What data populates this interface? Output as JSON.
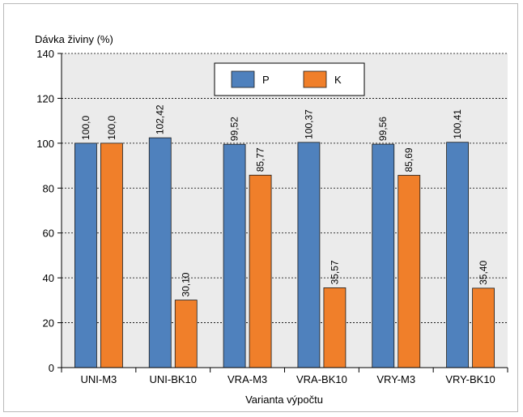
{
  "chart_data": {
    "type": "bar",
    "title": "",
    "ylabel": "Dávka živiny (%)",
    "xlabel": "Varianta výpočtu",
    "categories": [
      "UNI-M3",
      "UNI-BK10",
      "VRA-M3",
      "VRA-BK10",
      "VRY-M3",
      "VRY-BK10"
    ],
    "series": [
      {
        "name": "P",
        "color": "#4f81bd",
        "values": [
          100.0,
          102.42,
          99.52,
          100.37,
          99.56,
          100.41
        ],
        "labels": [
          "100,0",
          "102,42",
          "99,52",
          "100,37",
          "99,56",
          "100,41"
        ]
      },
      {
        "name": "K",
        "color": "#f07f2a",
        "values": [
          100.0,
          30.1,
          85.77,
          35.57,
          85.69,
          35.4
        ],
        "labels": [
          "100,0",
          "30,10",
          "85,77",
          "35,57",
          "85,69",
          "35,40"
        ]
      }
    ],
    "ylim": [
      0,
      140
    ],
    "yticks": [
      0,
      20,
      40,
      60,
      80,
      100,
      120,
      140
    ],
    "grid": true,
    "gridlines": "dashed",
    "legend_position": "top-center",
    "plot_background": "#ebebeb"
  }
}
